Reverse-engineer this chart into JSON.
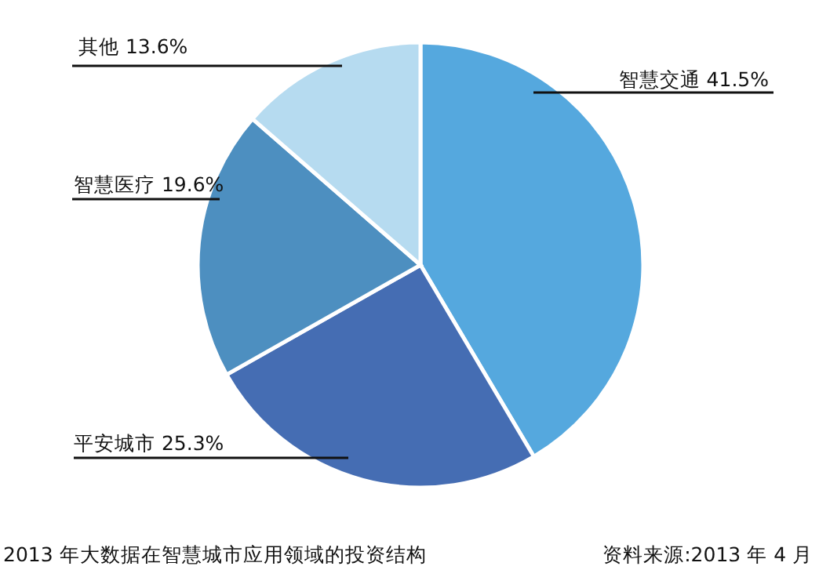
{
  "chart_data": {
    "type": "pie",
    "title": "2013 年大数据在智慧城市应用领域的投资结构",
    "annotations": [
      "资料来源:2013 年 4 月"
    ],
    "categories": [
      "智慧交通",
      "平安城市",
      "智慧医疗",
      "其他"
    ],
    "values": [
      41.5,
      25.3,
      19.6,
      13.6
    ],
    "colors": [
      "#55a8de",
      "#456db3",
      "#4d8fc0",
      "#b6dbf0"
    ],
    "value_labels": [
      "41.5%",
      "25.3%",
      "19.6%",
      "13.6%"
    ]
  }
}
